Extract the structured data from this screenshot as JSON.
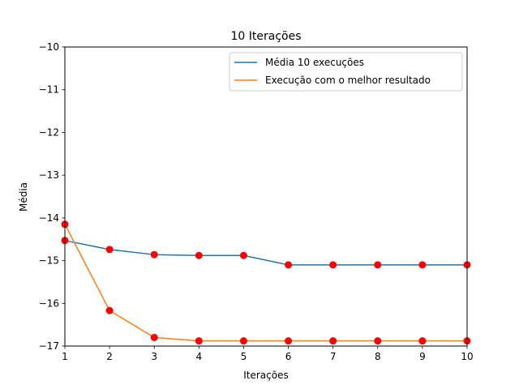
{
  "chart_data": {
    "type": "line",
    "title": "10 Iterações",
    "xlabel": "Iterações",
    "ylabel": "Média",
    "xlim": [
      1,
      10
    ],
    "ylim": [
      -17,
      -10
    ],
    "xticks": [
      "1",
      "2",
      "3",
      "4",
      "5",
      "6",
      "7",
      "8",
      "9",
      "10"
    ],
    "yticks": [
      "−10",
      "−11",
      "−12",
      "−13",
      "−14",
      "−15",
      "−16",
      "−17"
    ],
    "legend_position": "top-right",
    "grid": false,
    "x": [
      1,
      2,
      3,
      4,
      5,
      6,
      7,
      8,
      9,
      10
    ],
    "series": [
      {
        "name": "Média 10 execuções",
        "color": "#1f77b4",
        "values": [
          -14.53,
          -14.74,
          -14.86,
          -14.88,
          -14.88,
          -15.1,
          -15.1,
          -15.1,
          -15.1,
          -15.1
        ]
      },
      {
        "name": "Execução com o melhor resultado",
        "color": "#ff7f0e",
        "values": [
          -14.15,
          -16.17,
          -16.8,
          -16.88,
          -16.88,
          -16.88,
          -16.88,
          -16.88,
          -16.88,
          -16.88
        ]
      }
    ],
    "marker_color": "#ff0000"
  }
}
